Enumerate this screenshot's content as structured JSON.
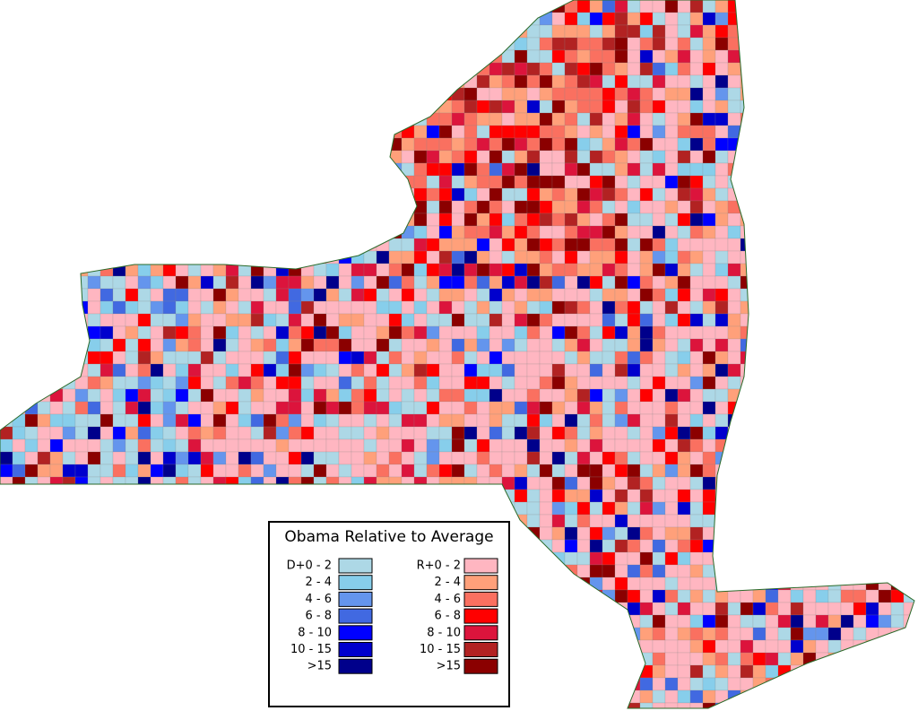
{
  "legend": {
    "title": "Obama Relative to Average",
    "democrat": [
      {
        "label": "D+0 - 2",
        "color": "#add8e6"
      },
      {
        "label": "2 - 4",
        "color": "#87ceeb"
      },
      {
        "label": "4 - 6",
        "color": "#6495ed"
      },
      {
        "label": "6 - 8",
        "color": "#4169e1"
      },
      {
        "label": "8 - 10",
        "color": "#0000ff"
      },
      {
        "label": "10 - 15",
        "color": "#0000cd"
      },
      {
        "label": ">15",
        "color": "#00008b"
      }
    ],
    "republican": [
      {
        "label": "R+0 - 2",
        "color": "#ffb6c1"
      },
      {
        "label": "2 - 4",
        "color": "#ffa07a"
      },
      {
        "label": "4 - 6",
        "color": "#fa7060"
      },
      {
        "label": "6 - 8",
        "color": "#ff0000"
      },
      {
        "label": "8 - 10",
        "color": "#dc143c"
      },
      {
        "label": "10 - 15",
        "color": "#b22222"
      },
      {
        "label": ">15",
        "color": "#8b0000"
      }
    ]
  }
}
